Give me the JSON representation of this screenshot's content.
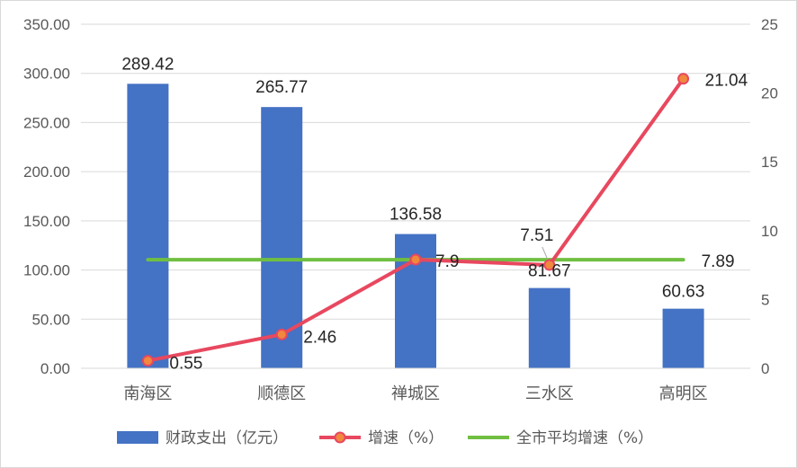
{
  "chart_data": {
    "type": "bar",
    "categories": [
      "南海区",
      "顺德区",
      "禅城区",
      "三水区",
      "高明区"
    ],
    "series": [
      {
        "name": "财政支出（亿元）",
        "kind": "bar",
        "axis": "left",
        "color": "#4472C4",
        "values": [
          289.42,
          265.77,
          136.58,
          81.67,
          60.63
        ],
        "labels": [
          "289.42",
          "265.77",
          "136.58",
          "81.67",
          "60.63"
        ]
      },
      {
        "name": "增速（%）",
        "kind": "line",
        "axis": "right",
        "color": "#E8485F",
        "marker_color": "#F0883E",
        "values": [
          0.55,
          2.46,
          7.9,
          7.51,
          21.04
        ],
        "labels": [
          "0.55",
          "2.46",
          "7.9",
          "7.51",
          "21.04"
        ]
      },
      {
        "name": "全市平均增速（%）",
        "kind": "line",
        "axis": "right",
        "color": "#70BF41",
        "values": [
          7.89,
          7.89,
          7.89,
          7.89,
          7.89
        ],
        "labels": [
          "",
          "",
          "",
          "",
          "7.89"
        ]
      }
    ],
    "y_left": {
      "ylim": [
        0,
        350
      ],
      "ticks": [
        "0.00",
        "50.00",
        "100.00",
        "150.00",
        "200.00",
        "250.00",
        "300.00",
        "350.00"
      ]
    },
    "y_right": {
      "ylim": [
        0,
        25
      ],
      "ticks": [
        "0",
        "5",
        "10",
        "15",
        "20",
        "25"
      ]
    },
    "grid": true,
    "legend": "bottom"
  }
}
